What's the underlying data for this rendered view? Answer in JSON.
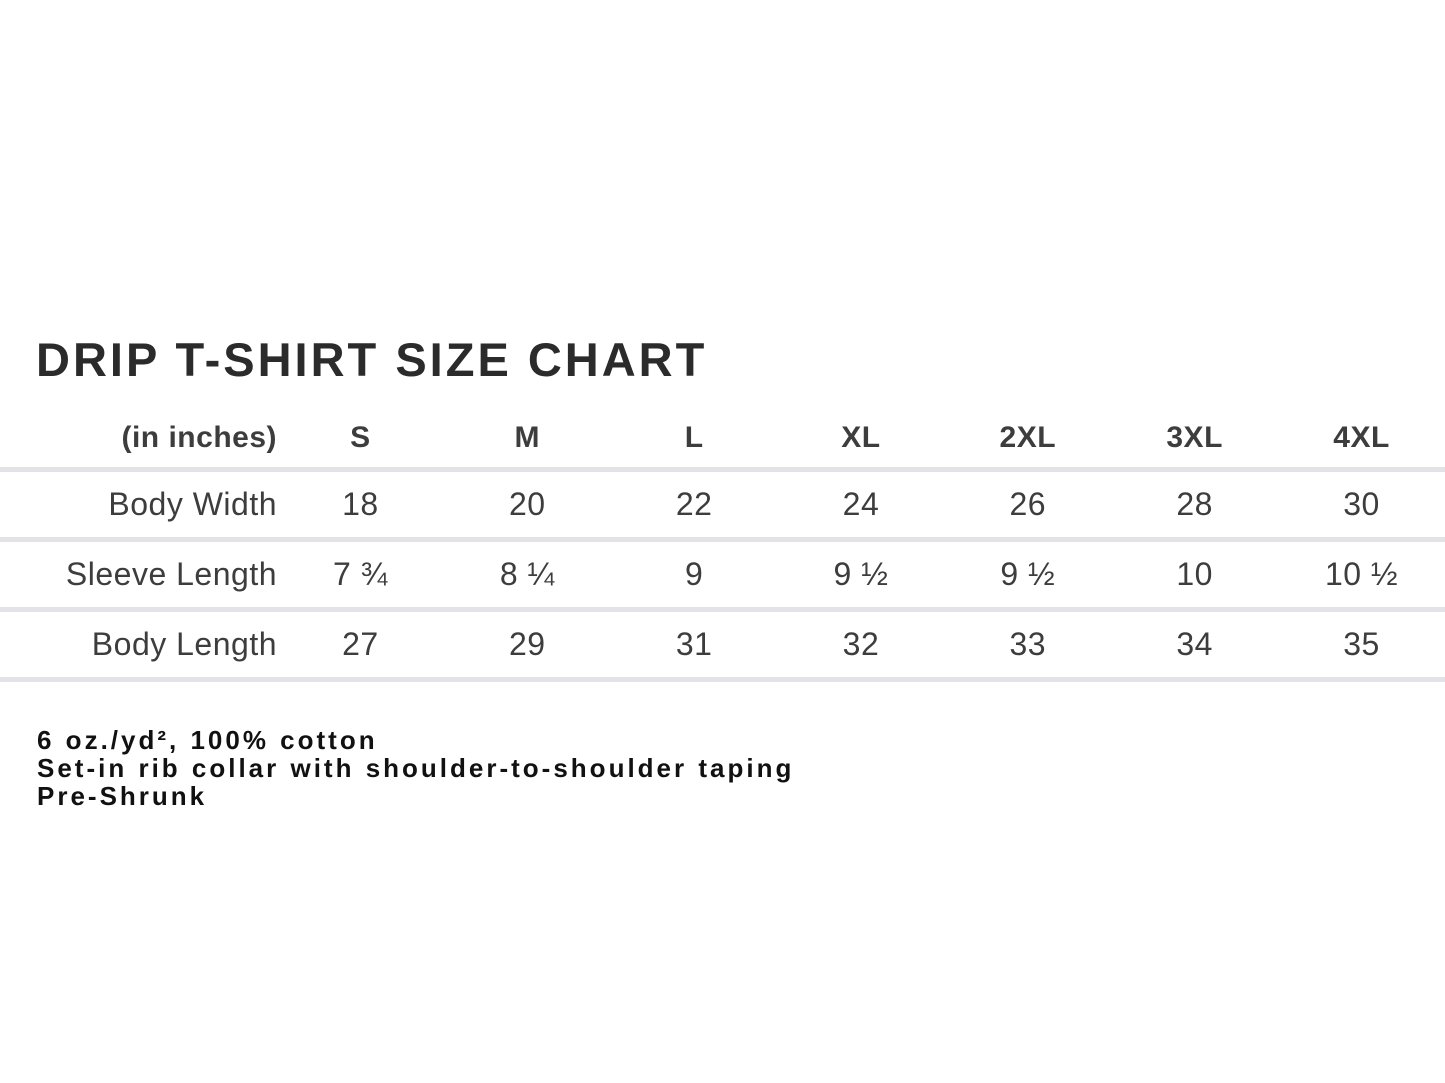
{
  "title": "DRIP T-SHIRT SIZE CHART",
  "chart_data": {
    "type": "table",
    "title": "DRIP T-SHIRT SIZE CHART",
    "unit_label": "(in inches)",
    "columns": [
      "S",
      "M",
      "L",
      "XL",
      "2XL",
      "3XL",
      "4XL"
    ],
    "rows": [
      {
        "label": "Body Width",
        "values": [
          "18",
          "20",
          "22",
          "24",
          "26",
          "28",
          "30"
        ]
      },
      {
        "label": "Sleeve Length",
        "values": [
          "7 ¾",
          "8 ¼",
          "9",
          "9 ½",
          "9 ½",
          "10",
          "10 ½"
        ]
      },
      {
        "label": "Body Length",
        "values": [
          "27",
          "29",
          "31",
          "32",
          "33",
          "34",
          "35"
        ]
      }
    ]
  },
  "notes": [
    "6 oz./yd², 100% cotton",
    "Set-in rib collar with shoulder-to-shoulder taping",
    "Pre-Shrunk"
  ],
  "colors": {
    "background": "#ffffff",
    "title_text": "#2b2b2b",
    "table_text": "#3d3d3d",
    "notes_text": "#111111",
    "divider": "#e3e3e7"
  }
}
